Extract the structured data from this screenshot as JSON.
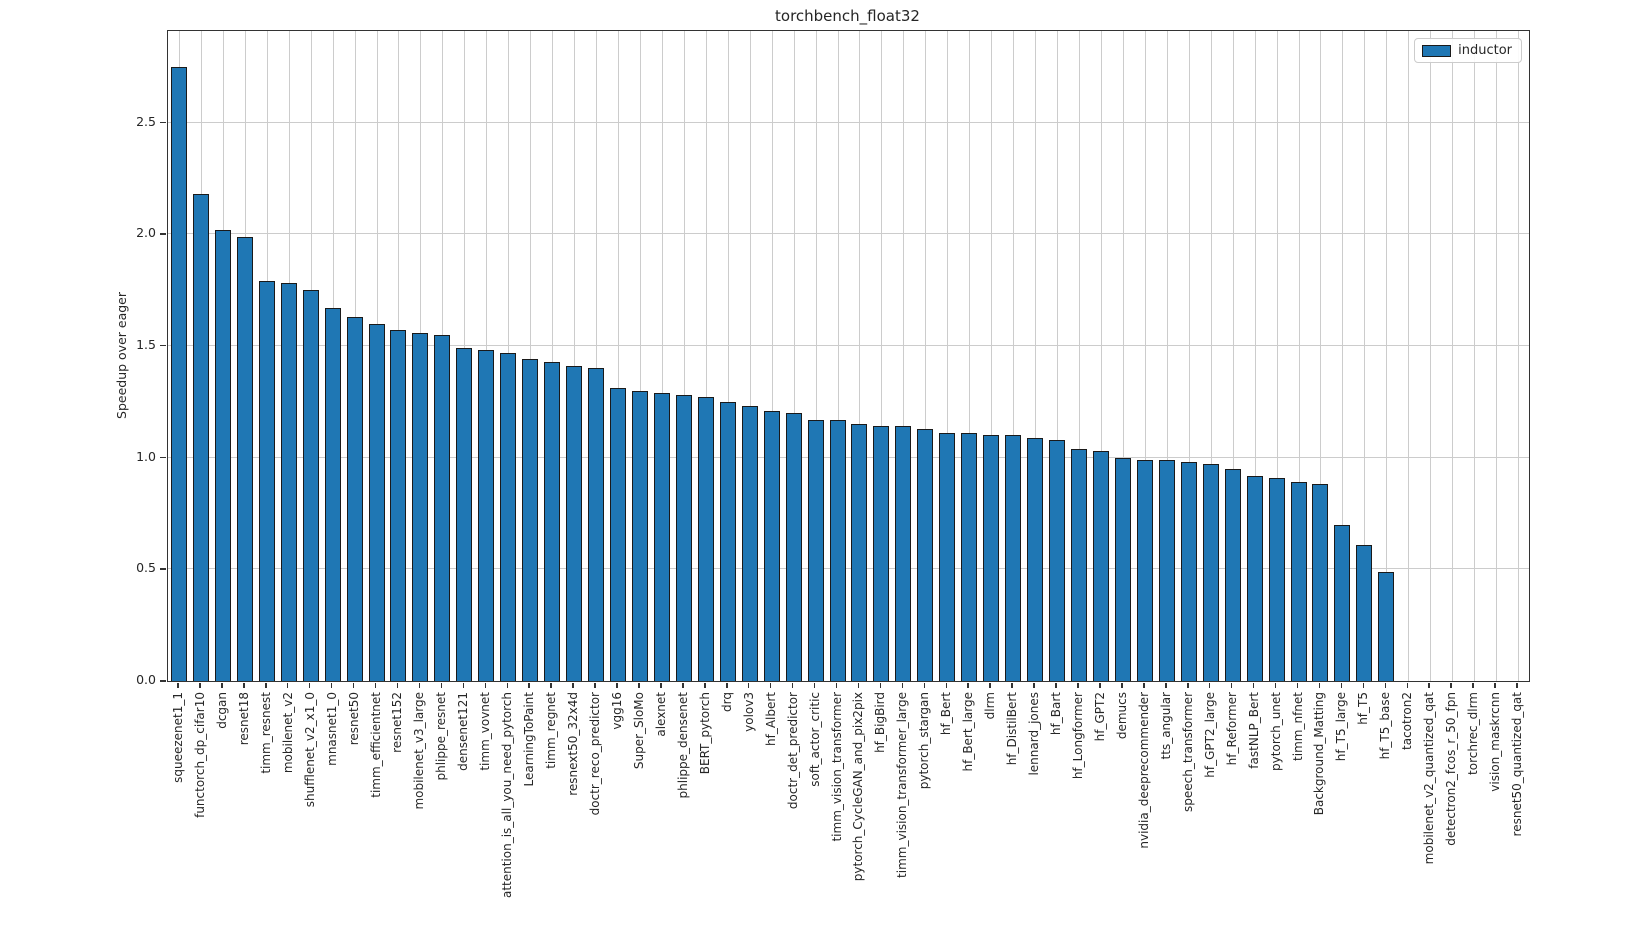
{
  "chart_data": {
    "type": "bar",
    "title": "torchbench_float32",
    "xlabel": "",
    "ylabel": "Speedup over eager",
    "legend": [
      "inductor"
    ],
    "legend_position": "upper right",
    "grid": true,
    "x_tick_rotation": 90,
    "ylim": [
      0,
      2.91
    ],
    "yticks": [
      0.0,
      0.5,
      1.0,
      1.5,
      2.0,
      2.5
    ],
    "bar_color": "#1f77b4",
    "bar_edge_color": "#1a1a1a",
    "grid_color": "#cccccc",
    "categories": [
      "squeezenet1_1",
      "functorch_dp_cifar10",
      "dcgan",
      "resnet18",
      "timm_resnest",
      "mobilenet_v2",
      "shufflenet_v2_x1_0",
      "mnasnet1_0",
      "resnet50",
      "timm_efficientnet",
      "resnet152",
      "mobilenet_v3_large",
      "phlippe_resnet",
      "densenet121",
      "timm_vovnet",
      "attention_is_all_you_need_pytorch",
      "LearningToPaint",
      "timm_regnet",
      "resnext50_32x4d",
      "doctr_reco_predictor",
      "vgg16",
      "Super_SloMo",
      "alexnet",
      "phlippe_densenet",
      "BERT_pytorch",
      "drq",
      "yolov3",
      "hf_Albert",
      "doctr_det_predictor",
      "soft_actor_critic",
      "timm_vision_transformer",
      "pytorch_CycleGAN_and_pix2pix",
      "hf_BigBird",
      "timm_vision_transformer_large",
      "pytorch_stargan",
      "hf_Bert",
      "hf_Bert_large",
      "dlrm",
      "hf_DistilBert",
      "lennard_jones",
      "hf_Bart",
      "hf_Longformer",
      "hf_GPT2",
      "demucs",
      "nvidia_deeprecommender",
      "tts_angular",
      "speech_transformer",
      "hf_GPT2_large",
      "hf_Reformer",
      "fastNLP_Bert",
      "pytorch_unet",
      "timm_nfnet",
      "Background_Matting",
      "hf_T5_large",
      "hf_T5",
      "hf_T5_base",
      "tacotron2",
      "mobilenet_v2_quantized_qat",
      "detectron2_fcos_r_50_fpn",
      "torchrec_dlrm",
      "vision_maskrcnn",
      "resnet50_quantized_qat"
    ],
    "values": [
      2.75,
      2.18,
      2.02,
      1.99,
      1.79,
      1.78,
      1.75,
      1.67,
      1.63,
      1.6,
      1.57,
      1.56,
      1.55,
      1.49,
      1.48,
      1.47,
      1.44,
      1.43,
      1.41,
      1.4,
      1.31,
      1.3,
      1.29,
      1.28,
      1.27,
      1.25,
      1.23,
      1.21,
      1.2,
      1.17,
      1.17,
      1.15,
      1.14,
      1.14,
      1.13,
      1.11,
      1.11,
      1.1,
      1.1,
      1.09,
      1.08,
      1.04,
      1.03,
      1.0,
      0.99,
      0.99,
      0.98,
      0.97,
      0.95,
      0.92,
      0.91,
      0.89,
      0.88,
      0.7,
      0.61,
      0.49,
      0,
      0,
      0,
      0,
      0,
      0
    ]
  }
}
